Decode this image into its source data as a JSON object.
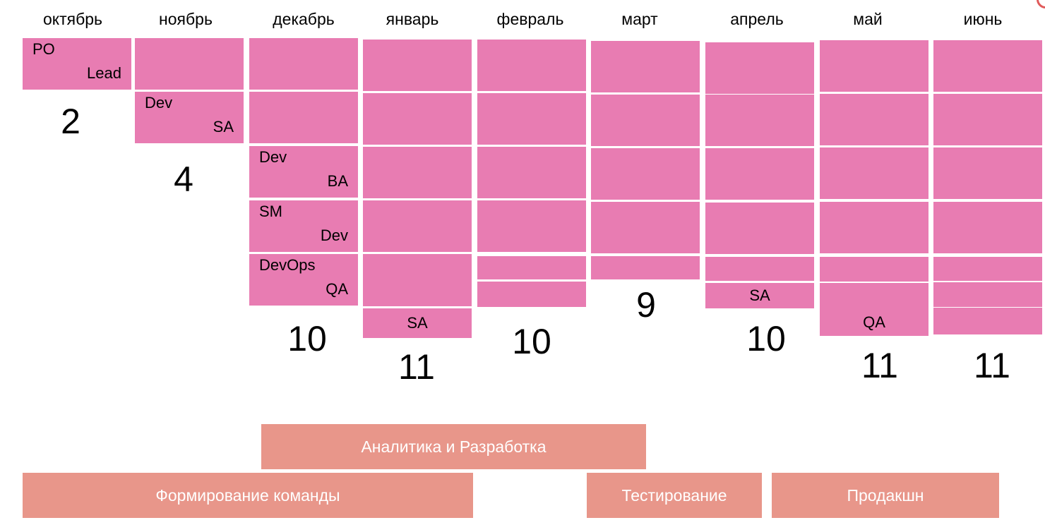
{
  "colors": {
    "block": "#e87cb2",
    "phase": "#e8968a",
    "accent": "#e05a5a"
  },
  "months": [
    {
      "name": "октябрь",
      "blocks": [
        {
          "roles": [
            "PO",
            "Lead"
          ]
        }
      ],
      "count": "2"
    },
    {
      "name": "ноябрь",
      "blocks": [
        {
          "roles": []
        },
        {
          "roles": [
            "Dev",
            "SA"
          ]
        }
      ],
      "count": "4"
    },
    {
      "name": "декабрь",
      "blocks": [
        {
          "roles": []
        },
        {
          "roles": []
        },
        {
          "roles": [
            "Dev",
            "BA"
          ]
        },
        {
          "roles": [
            "SM",
            "Dev"
          ]
        },
        {
          "roles": [
            "DevOps",
            "QA"
          ]
        }
      ],
      "count": "10"
    },
    {
      "name": "январь",
      "blocks": [
        {
          "roles": []
        },
        {
          "roles": []
        },
        {
          "roles": []
        },
        {
          "roles": []
        },
        {
          "roles": []
        },
        {
          "roles": [
            "SA"
          ]
        }
      ],
      "count": "11"
    },
    {
      "name": "февраль",
      "blocks": [
        {
          "roles": []
        },
        {
          "roles": []
        },
        {
          "roles": []
        },
        {
          "roles": []
        },
        {
          "roles": []
        },
        {
          "roles": []
        }
      ],
      "count": "10"
    },
    {
      "name": "март",
      "blocks": [
        {
          "roles": []
        },
        {
          "roles": []
        },
        {
          "roles": []
        },
        {
          "roles": []
        },
        {
          "roles": []
        }
      ],
      "count": "9"
    },
    {
      "name": "апрель",
      "blocks": [
        {
          "roles": []
        },
        {
          "roles": []
        },
        {
          "roles": []
        },
        {
          "roles": []
        },
        {
          "roles": []
        },
        {
          "roles": [
            "SA"
          ]
        }
      ],
      "count": "10"
    },
    {
      "name": "май",
      "blocks": [
        {
          "roles": []
        },
        {
          "roles": []
        },
        {
          "roles": []
        },
        {
          "roles": []
        },
        {
          "roles": []
        },
        {
          "roles": []
        },
        {
          "roles": [
            "QA"
          ]
        }
      ],
      "count": "11"
    },
    {
      "name": "июнь",
      "blocks": [
        {
          "roles": []
        },
        {
          "roles": []
        },
        {
          "roles": []
        },
        {
          "roles": []
        },
        {
          "roles": []
        },
        {
          "roles": []
        },
        {
          "roles": []
        }
      ],
      "count": "11"
    }
  ],
  "phases": [
    {
      "label": "Аналитика и Разработка"
    },
    {
      "label": "Формирование команды"
    },
    {
      "label": "Тестирование"
    },
    {
      "label": "Продакшн"
    }
  ]
}
